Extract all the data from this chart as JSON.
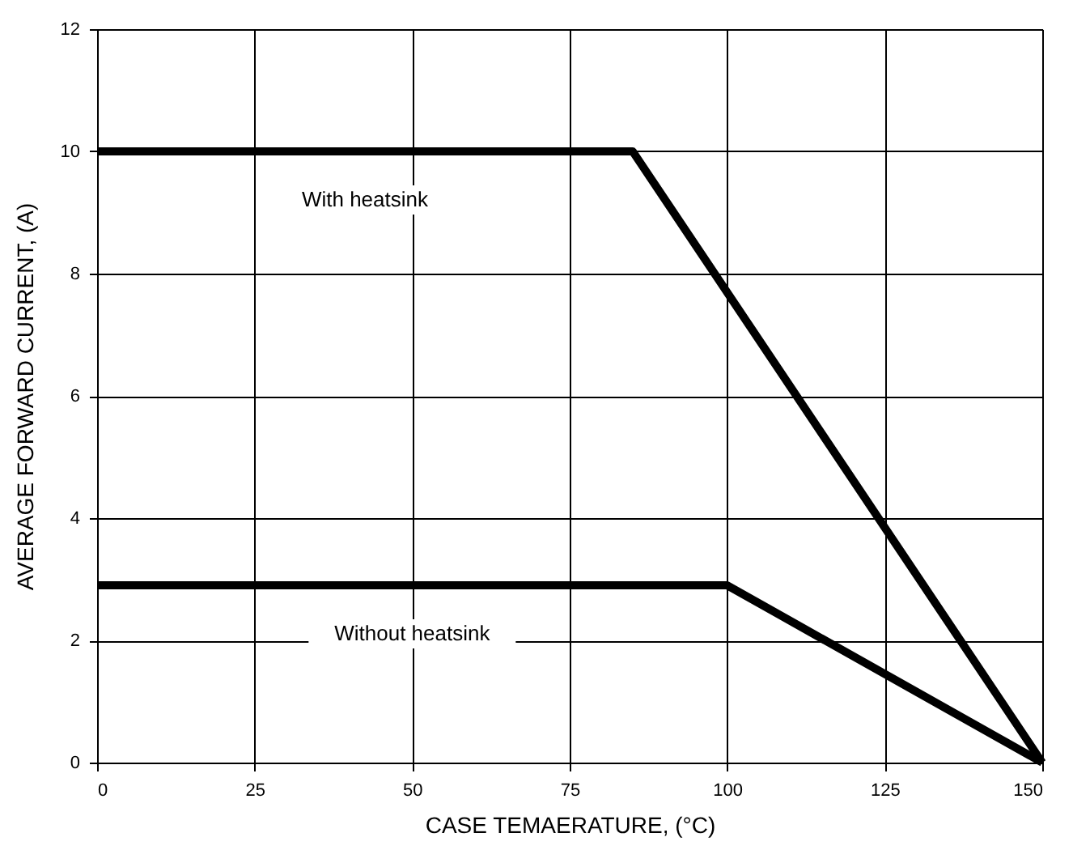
{
  "chart_data": {
    "type": "line",
    "xlabel": "CASE TEMAERATURE, (°C)",
    "ylabel": "AVERAGE FORWARD CURRENT, (A)",
    "series": [
      {
        "name": "With heatsink",
        "color": "#000000",
        "x": [
          0,
          85,
          150
        ],
        "values": [
          10,
          10,
          0
        ]
      },
      {
        "name": "Without heatsink",
        "color": "#000000",
        "x": [
          0,
          100,
          150
        ],
        "values": [
          2.9,
          2.9,
          0
        ]
      }
    ],
    "xlim": [
      0,
      150
    ],
    "xticks": [
      0,
      25,
      50,
      75,
      100,
      125,
      150
    ],
    "ylim": [
      0,
      12
    ],
    "yticks": [
      0,
      2,
      4,
      6,
      8,
      10,
      12
    ],
    "grid": true,
    "marker": "none",
    "line_style": "solid"
  }
}
